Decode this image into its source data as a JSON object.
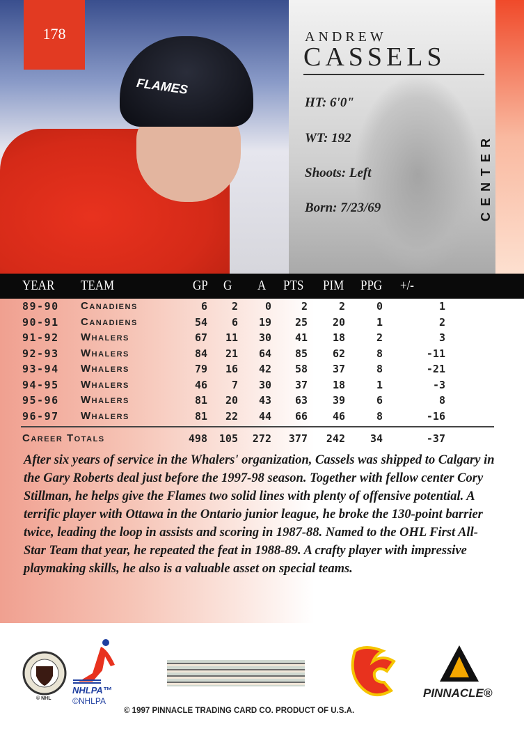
{
  "card": {
    "number": "178",
    "first_name": "ANDREW",
    "last_name": "CASSELS",
    "position": "CENTER",
    "helmet_text": "FLAMES"
  },
  "bio_stats": {
    "height": "HT: 6'0\"",
    "weight": "WT: 192",
    "shoots": "Shoots: Left",
    "born": "Born: 7/23/69"
  },
  "stats": {
    "headers": [
      "YEAR",
      "TEAM",
      "GP",
      "G",
      "A",
      "PTS",
      "PIM",
      "PPG",
      "+/-"
    ],
    "rows": [
      [
        "89-90",
        "Canadiens",
        "6",
        "2",
        "0",
        "2",
        "2",
        "0",
        "1"
      ],
      [
        "90-91",
        "Canadiens",
        "54",
        "6",
        "19",
        "25",
        "20",
        "1",
        "2"
      ],
      [
        "91-92",
        "Whalers",
        "67",
        "11",
        "30",
        "41",
        "18",
        "2",
        "3"
      ],
      [
        "92-93",
        "Whalers",
        "84",
        "21",
        "64",
        "85",
        "62",
        "8",
        "-11"
      ],
      [
        "93-94",
        "Whalers",
        "79",
        "16",
        "42",
        "58",
        "37",
        "8",
        "-21"
      ],
      [
        "94-95",
        "Whalers",
        "46",
        "7",
        "30",
        "37",
        "18",
        "1",
        "-3"
      ],
      [
        "95-96",
        "Whalers",
        "81",
        "20",
        "43",
        "63",
        "39",
        "6",
        "8"
      ],
      [
        "96-97",
        "Whalers",
        "81",
        "22",
        "44",
        "66",
        "46",
        "8",
        "-16"
      ]
    ],
    "totals": {
      "label": "Career Totals",
      "values": [
        "498",
        "105",
        "272",
        "377",
        "242",
        "34",
        "-37"
      ]
    }
  },
  "bio": "After six years of service in the Whalers' organization, Cassels was shipped to Calgary in the Gary Roberts deal just before the 1997-98 season. Together with fellow center Cory Stillman, he helps give the Flames two solid lines with plenty of offensive potential. A terrific player with Ottawa in the Ontario junior league, he broke the 130-point barrier twice, leading the loop in assists and scoring in 1987-88. Named to the OHL First All-Star Team that year, he repeated the feat in 1988-89. A crafty player with impressive playmaking skills, he also is a valuable asset on special teams.",
  "footer": {
    "nhl_copy": "© NHL",
    "nhlpa": "NHLPA™",
    "nhlpa_copy": "©NHLPA",
    "copyright": "© 1997 PINNACLE TRADING CARD CO. PRODUCT OF U.S.A.",
    "pinnacle": "PINNACLE®"
  },
  "colors": {
    "accent_red": "#e23a22",
    "flames_yellow": "#f5c400",
    "header_black": "#0a0a0a"
  }
}
